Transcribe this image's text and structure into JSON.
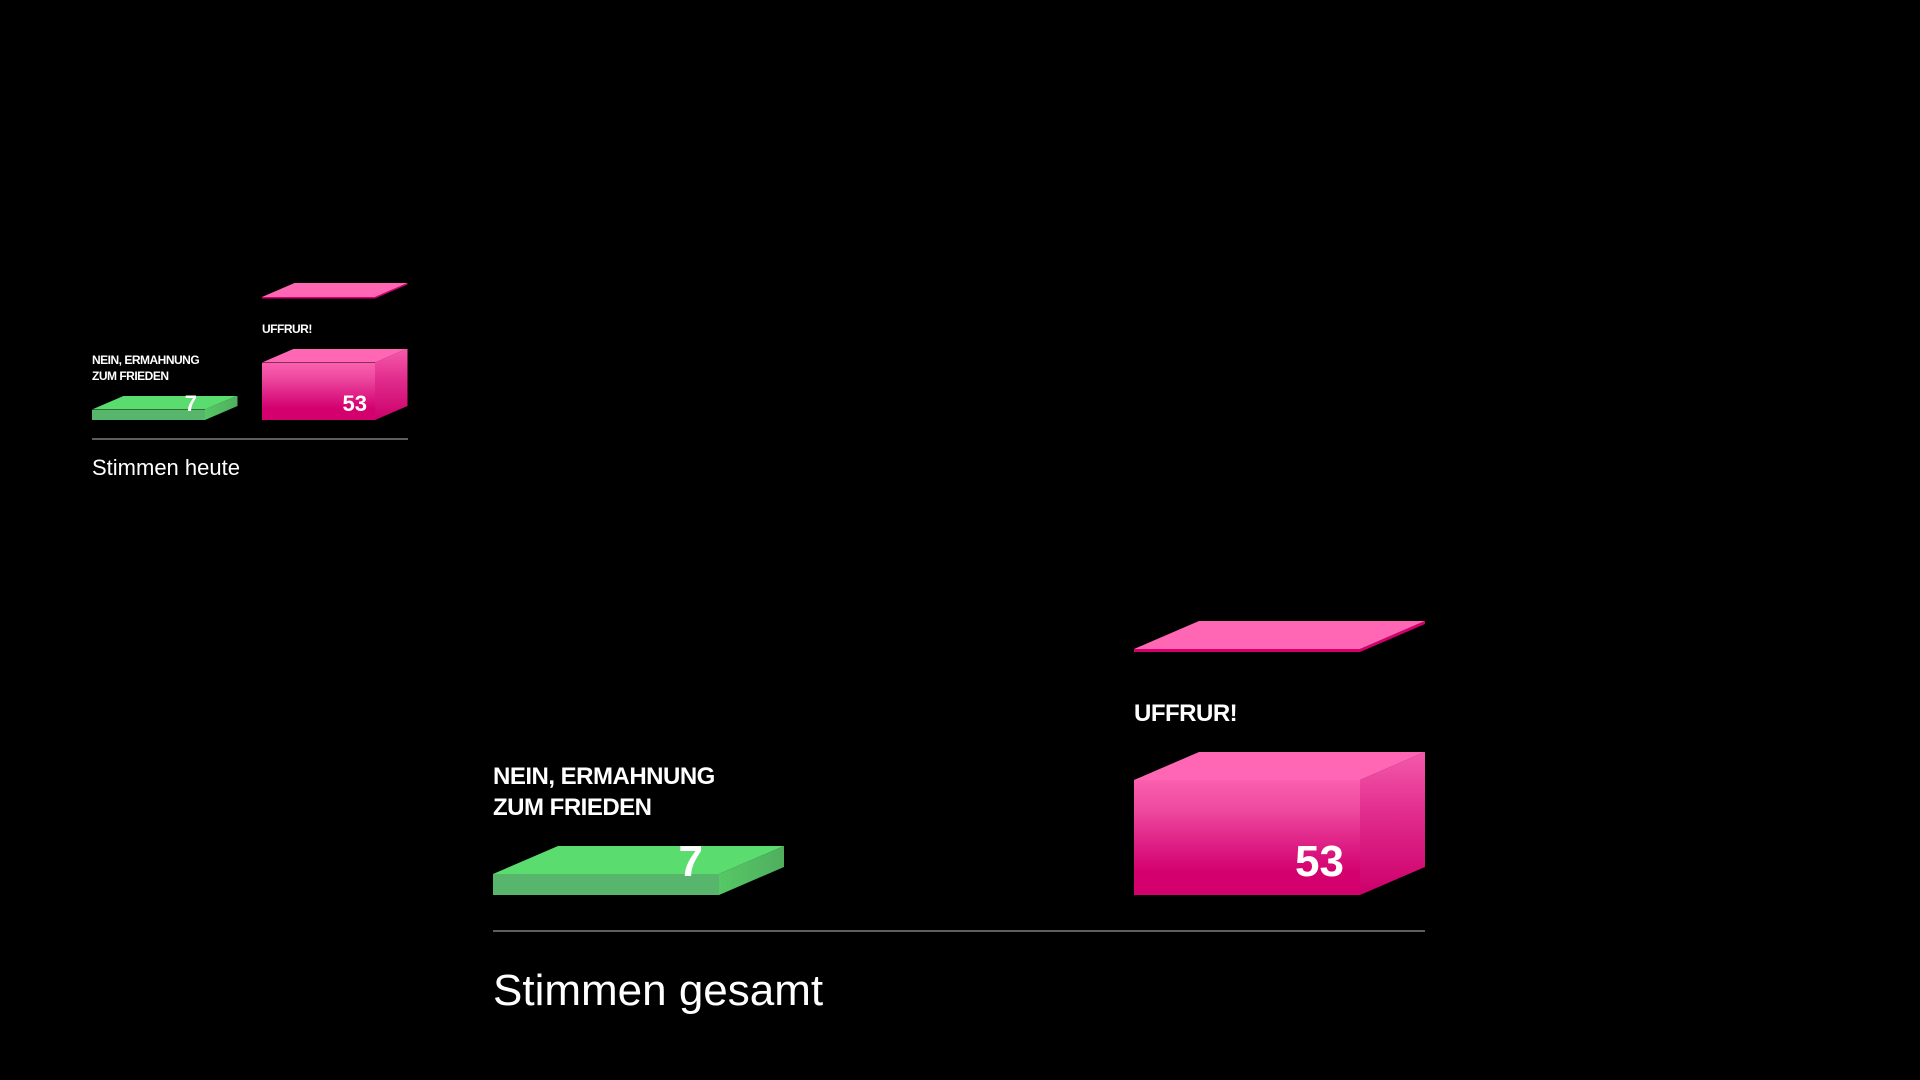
{
  "chart_data": [
    {
      "type": "bar",
      "style": "3d-boxes",
      "caption": "Stimmen heute",
      "categories": [
        "NEIN, ERMAHNUNG ZUM FRIEDEN",
        "UFFRUR!"
      ],
      "values": [
        7,
        53
      ],
      "colors": [
        "#5adc6e",
        "#ff66b4"
      ]
    },
    {
      "type": "bar",
      "style": "3d-boxes",
      "caption": "Stimmen gesamt",
      "categories": [
        "NEIN, ERMAHNUNG ZUM FRIEDEN",
        "UFFRUR!"
      ],
      "values": [
        7,
        53
      ],
      "colors": [
        "#5adc6e",
        "#ff66b4"
      ]
    }
  ]
}
